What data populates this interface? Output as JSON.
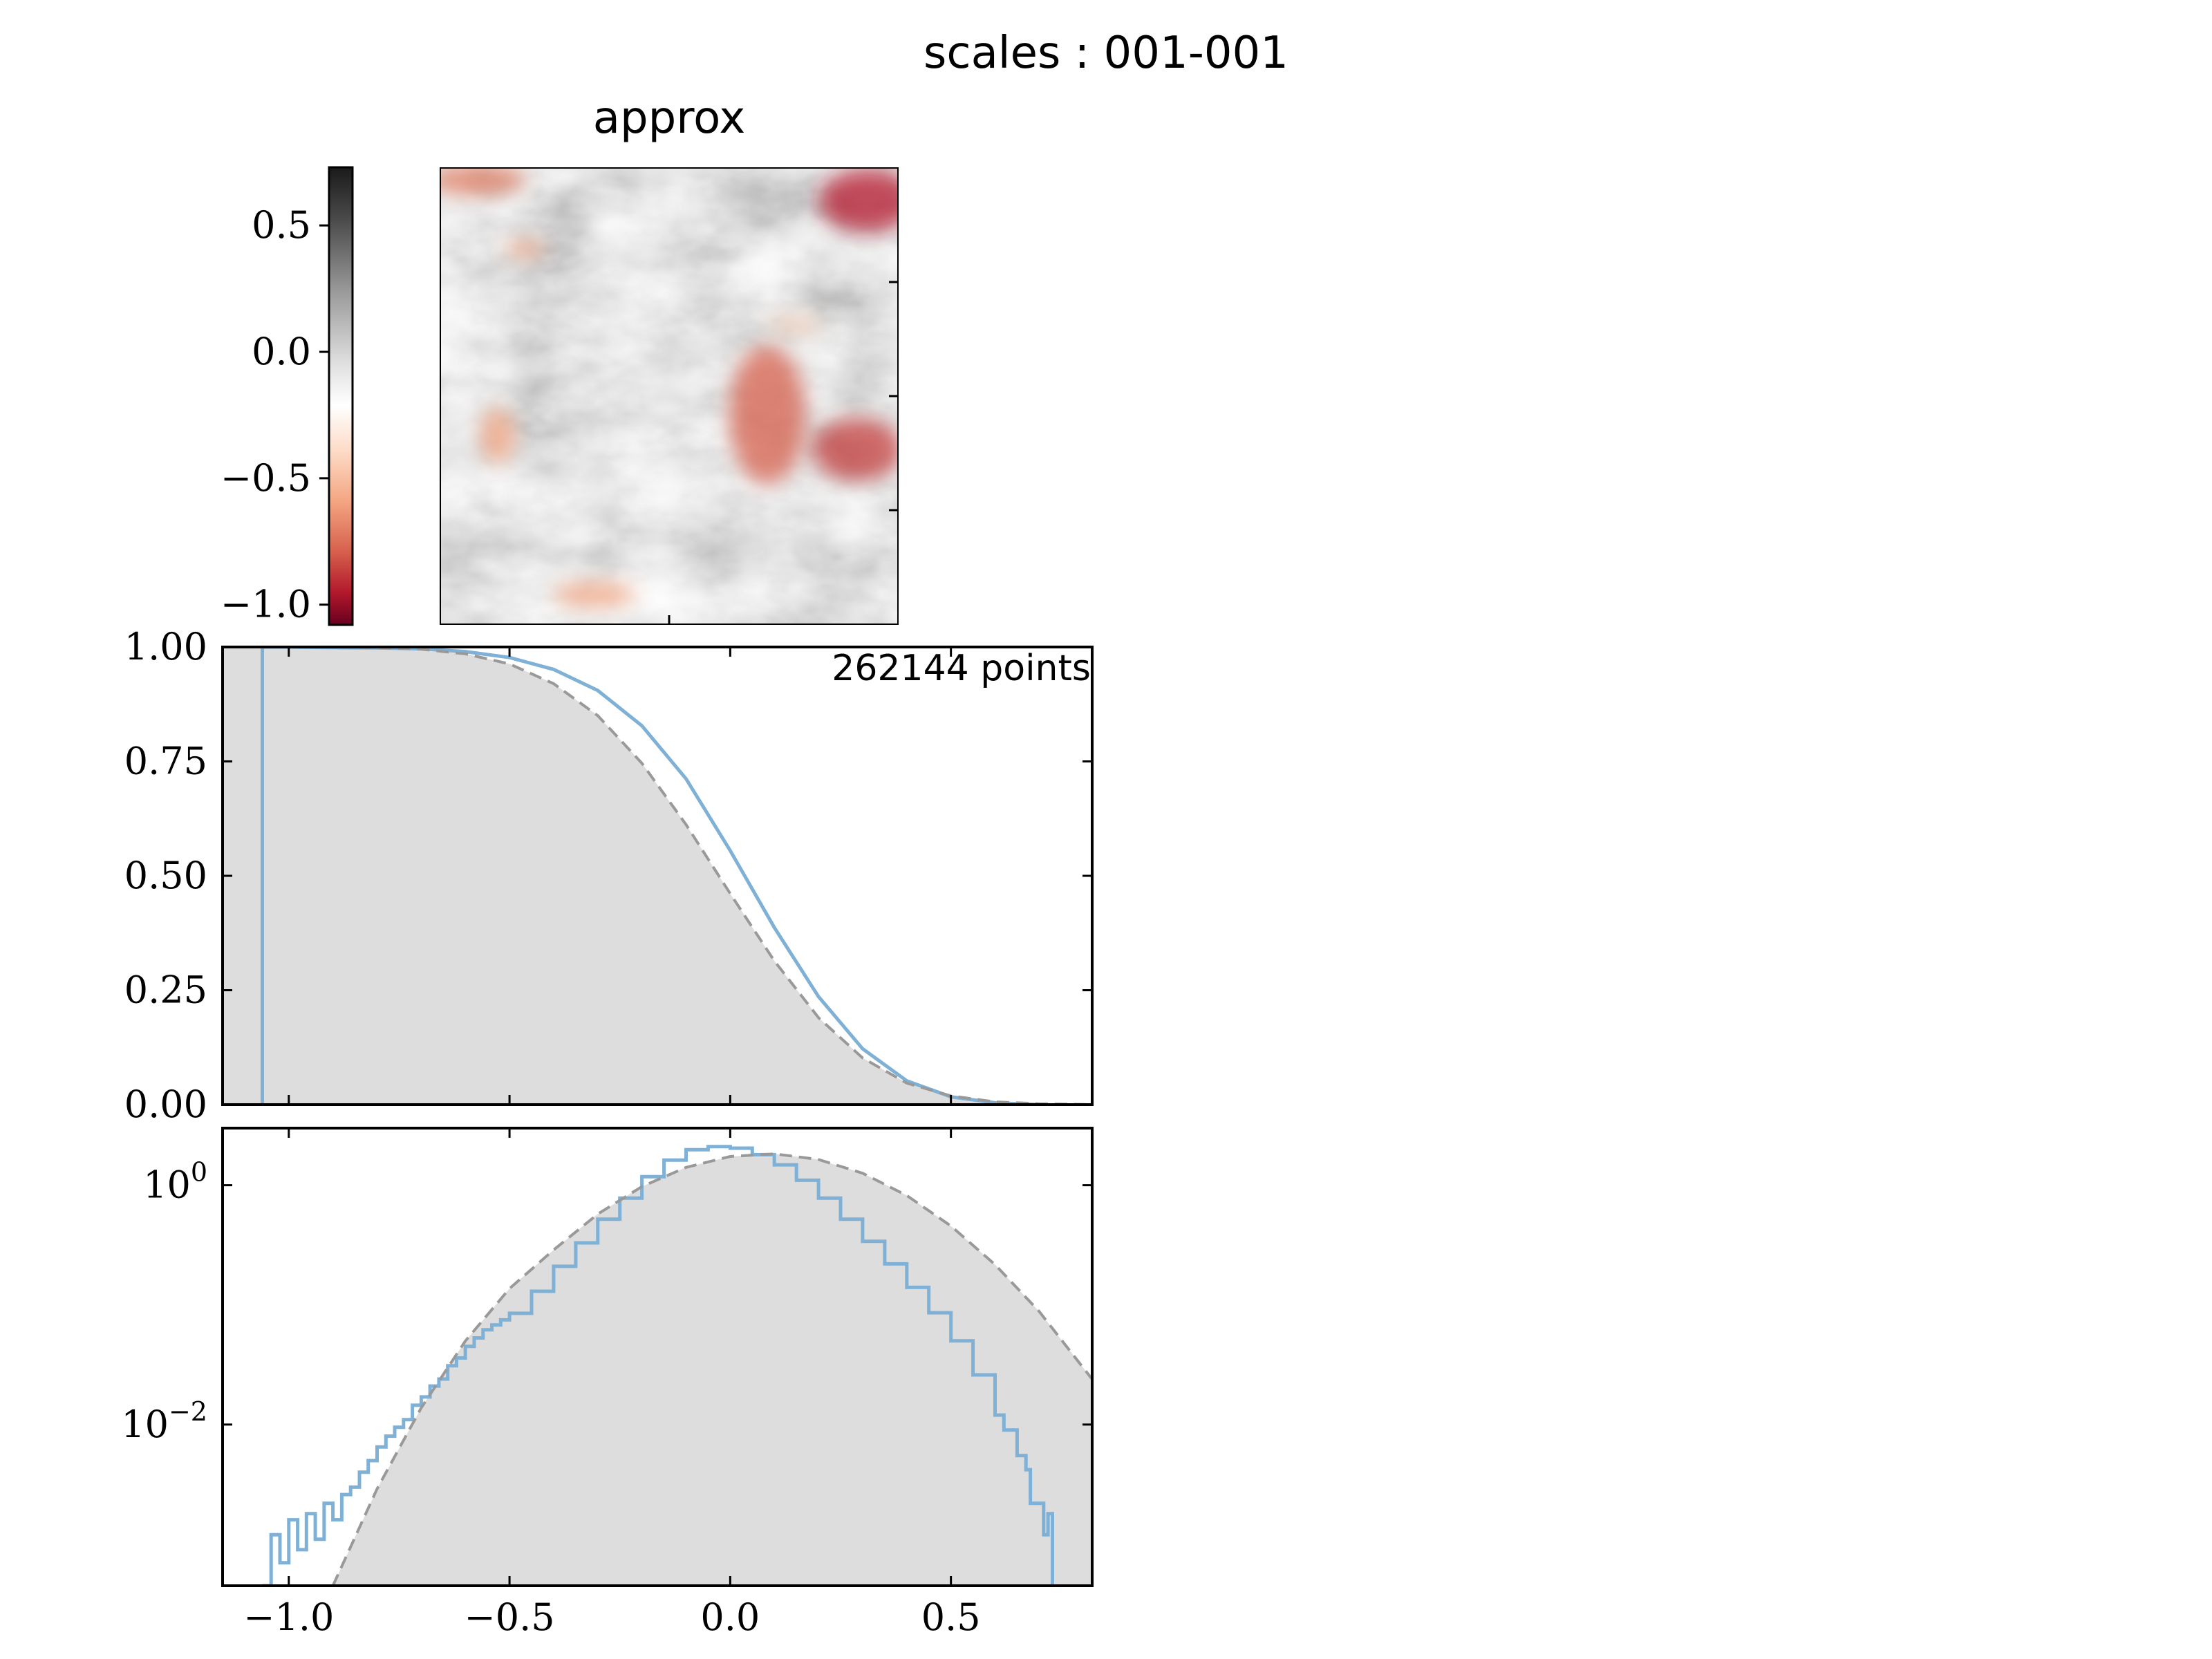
{
  "figure": {
    "suptitle": "scales : 001-001"
  },
  "image_panel": {
    "title": "approx",
    "colormap": "RdGy",
    "colors": {
      "neg": "#67001f",
      "mid": "#ffffff",
      "pos": "#1a1a1a"
    }
  },
  "colorbar": {
    "vmin": -1.08,
    "vmax": 0.73,
    "ticks": [
      0.5,
      0.0,
      -0.5,
      -1.0
    ],
    "tick_labels": [
      "0.5",
      "0.0",
      "−0.5",
      "−1.0"
    ]
  },
  "chart_data": [
    {
      "type": "area",
      "name": "survival",
      "annotation": "262144 points",
      "xlim": [
        -1.15,
        0.82
      ],
      "ylim": [
        0.0,
        1.0
      ],
      "yticks": [
        0.0,
        0.25,
        0.5,
        0.75,
        1.0
      ],
      "ytick_labels": [
        "0.00",
        "0.25",
        "0.50",
        "0.75",
        "1.00"
      ],
      "xticks": [
        -1.0,
        -0.5,
        0.0,
        0.5
      ],
      "series": [
        {
          "role": "empirical",
          "color": "#7fb0d6",
          "x": [
            -1.06,
            -1.0,
            -0.9,
            -0.8,
            -0.7,
            -0.6,
            -0.5,
            -0.4,
            -0.3,
            -0.2,
            -0.1,
            0.0,
            0.1,
            0.2,
            0.3,
            0.4,
            0.5,
            0.6,
            0.7
          ],
          "y": [
            1.0,
            1.0,
            0.999,
            0.998,
            0.996,
            0.99,
            0.977,
            0.951,
            0.905,
            0.828,
            0.712,
            0.555,
            0.387,
            0.236,
            0.122,
            0.052,
            0.017,
            0.004,
            0.0
          ]
        },
        {
          "role": "gaussian",
          "color": "#999999",
          "x": [
            -1.06,
            -1.0,
            -0.9,
            -0.8,
            -0.7,
            -0.6,
            -0.5,
            -0.4,
            -0.3,
            -0.2,
            -0.1,
            0.0,
            0.1,
            0.2,
            0.3,
            0.4,
            0.5,
            0.6,
            0.7,
            0.82
          ],
          "y": [
            1.0,
            1.0,
            1.0,
            0.999,
            0.995,
            0.985,
            0.963,
            0.92,
            0.85,
            0.746,
            0.612,
            0.461,
            0.314,
            0.19,
            0.102,
            0.047,
            0.019,
            0.006,
            0.002,
            0.0
          ]
        }
      ]
    },
    {
      "type": "area",
      "name": "pdf",
      "scale": "log",
      "xlim": [
        -1.15,
        0.82
      ],
      "ylim": [
        0.00045,
        3.0
      ],
      "yticks": [
        1,
        0.01
      ],
      "xticks": [
        -1.0,
        -0.5,
        0.0,
        0.5
      ],
      "xtick_labels": [
        "−1.0",
        "−0.5",
        "0.0",
        "0.5"
      ],
      "series": [
        {
          "role": "empirical",
          "color": "#7fb0d6",
          "x": [
            -1.06,
            -1.04,
            -1.02,
            -1.0,
            -0.98,
            -0.96,
            -0.94,
            -0.92,
            -0.9,
            -0.88,
            -0.86,
            -0.84,
            -0.82,
            -0.8,
            -0.78,
            -0.76,
            -0.74,
            -0.72,
            -0.7,
            -0.68,
            -0.66,
            -0.64,
            -0.62,
            -0.6,
            -0.58,
            -0.56,
            -0.54,
            -0.52,
            -0.5,
            -0.45,
            -0.4,
            -0.35,
            -0.3,
            -0.25,
            -0.2,
            -0.15,
            -0.1,
            -0.05,
            0.0,
            0.05,
            0.1,
            0.15,
            0.2,
            0.25,
            0.3,
            0.35,
            0.4,
            0.45,
            0.5,
            0.55,
            0.6,
            0.62,
            0.65,
            0.67,
            0.68,
            0.7,
            0.71,
            0.72,
            0.73
          ],
          "y": [
            0.00045,
            0.0012,
            0.0007,
            0.0016,
            0.0009,
            0.0018,
            0.0011,
            0.0022,
            0.0016,
            0.0026,
            0.003,
            0.004,
            0.005,
            0.0065,
            0.008,
            0.0095,
            0.011,
            0.0145,
            0.017,
            0.021,
            0.024,
            0.031,
            0.036,
            0.045,
            0.053,
            0.062,
            0.068,
            0.075,
            0.085,
            0.13,
            0.21,
            0.33,
            0.52,
            0.78,
            1.18,
            1.62,
            1.98,
            2.1,
            2.04,
            1.8,
            1.48,
            1.1,
            0.78,
            0.52,
            0.34,
            0.22,
            0.14,
            0.086,
            0.05,
            0.026,
            0.012,
            0.009,
            0.0055,
            0.0042,
            0.0022,
            0.0022,
            0.0012,
            0.0018,
            0.00045
          ]
        },
        {
          "role": "gaussian",
          "color": "#999999",
          "x": [
            -0.9,
            -0.8,
            -0.7,
            -0.6,
            -0.5,
            -0.4,
            -0.3,
            -0.2,
            -0.1,
            0.0,
            0.1,
            0.2,
            0.3,
            0.4,
            0.5,
            0.6,
            0.7,
            0.82
          ],
          "y": [
            0.00045,
            0.0029,
            0.0138,
            0.0499,
            0.137,
            0.288,
            0.574,
            0.974,
            1.41,
            1.74,
            1.83,
            1.64,
            1.26,
            0.82,
            0.456,
            0.217,
            0.088,
            0.0239
          ]
        }
      ]
    }
  ]
}
